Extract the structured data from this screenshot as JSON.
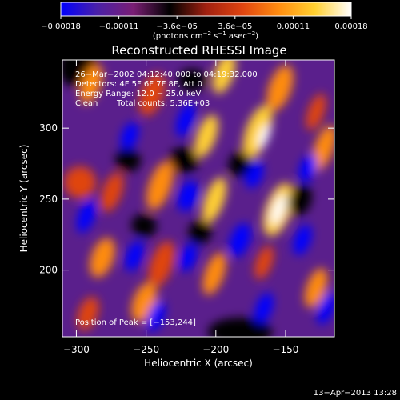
{
  "chart_data": {
    "type": "heatmap",
    "title": "Reconstructed RHESSI Image",
    "xlabel": "Heliocentric X (arcsec)",
    "ylabel": "Heliocentric Y (arcsec)",
    "xlim": [
      -310,
      -115
    ],
    "ylim": [
      153,
      348
    ],
    "x_ticks": [
      -300,
      -250,
      -200,
      -150
    ],
    "y_ticks": [
      200,
      250,
      300
    ],
    "x_tick_labels": [
      "−300",
      "−250",
      "−200",
      "−150"
    ],
    "y_tick_labels": [
      "200",
      "250",
      "300"
    ],
    "colorbar": {
      "range": [
        -0.00018,
        0.00018
      ],
      "tick_labels": [
        "−0.00018",
        "−0.00011",
        "−3.6e−05",
        "3.6e−05",
        "0.00011",
        "0.00018"
      ],
      "unit_parts": [
        "(photons cm",
        "−2",
        " s",
        "−1",
        " asec",
        "−2",
        ")"
      ],
      "colors": [
        "#0000ff",
        "#4a20a8",
        "#7a1e74",
        "#000000",
        "#a02010",
        "#e04410",
        "#ff8c10",
        "#ffd030",
        "#ffffff"
      ]
    },
    "annotations": [
      "26−Mar−2002 04:12:40.000 to 04:19:32.000",
      "Detectors: 4F 5F 6F 7F 8F, Att 0",
      "Energy Range: 12.0 − 25.0 keV",
      "Clean",
      "Total counts: 5.36E+03"
    ],
    "peak_label": "Position of Peak = [−153,244]",
    "peak": {
      "x": -153,
      "y": 244
    },
    "timestamp": "13−Apr−2013 13:28"
  }
}
